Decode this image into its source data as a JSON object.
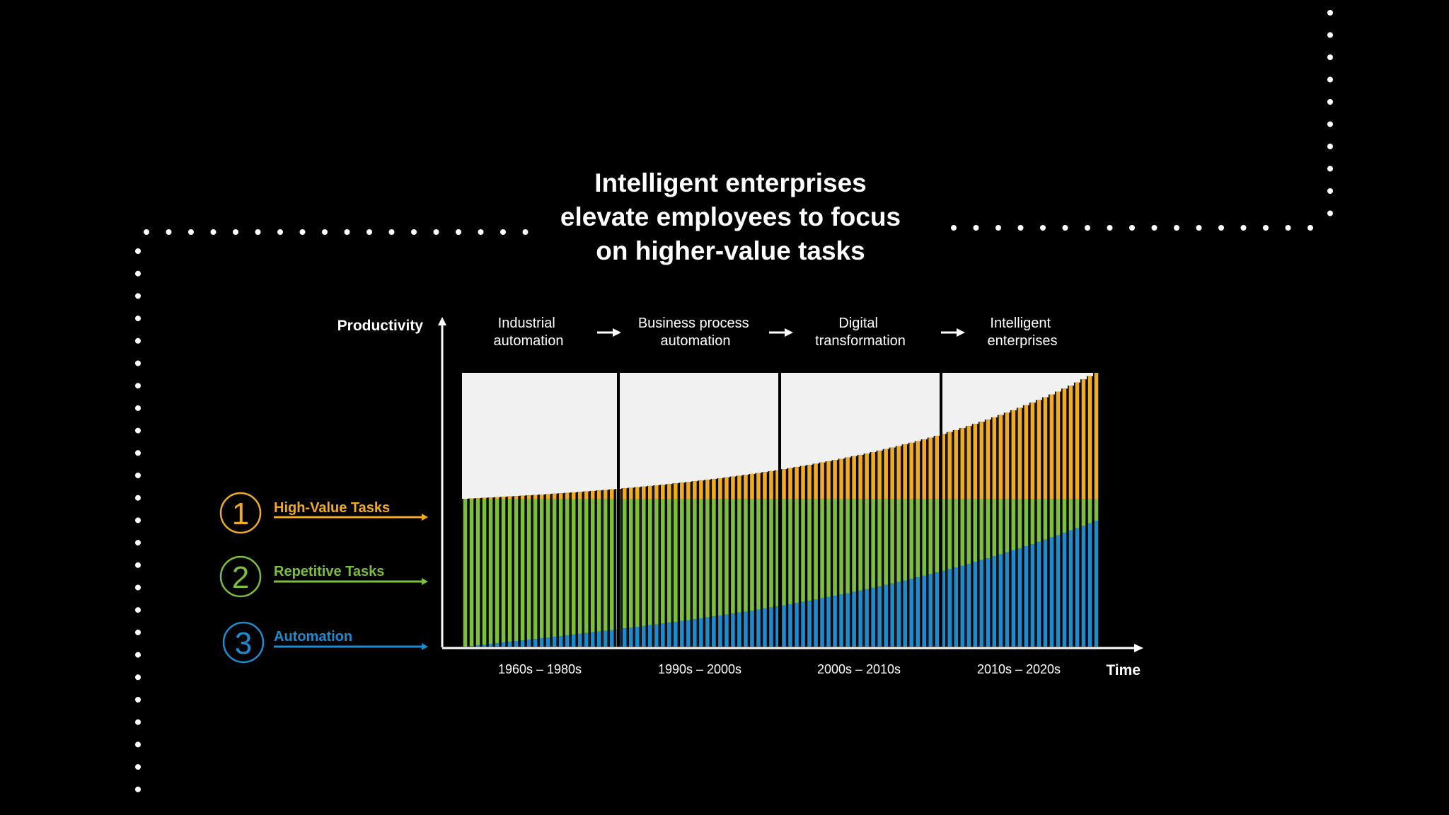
{
  "title_lines": [
    "Intelligent enterprises",
    "elevate employees to focus",
    "on higher-value tasks"
  ],
  "colors": {
    "high_value": "#F0AB22",
    "repetitive": "#7DBE3F",
    "automation": "#1E8BCF",
    "panel": "#F2F1F2",
    "background": "#000000"
  },
  "chart_data": {
    "type": "bar",
    "stacked": true,
    "ylabel": "Productivity",
    "xlabel": "Time",
    "eras": [
      {
        "label_lines": [
          "Industrial",
          "automation"
        ],
        "period": "1960s – 1980s"
      },
      {
        "label_lines": [
          "Business process",
          "automation"
        ],
        "period": "1990s – 2000s"
      },
      {
        "label_lines": [
          "Digital",
          "transformation"
        ],
        "period": "2000s – 2010s"
      },
      {
        "label_lines": [
          "Intelligent",
          "enterprises"
        ],
        "period": "2010s – 2020s"
      }
    ],
    "legend": [
      {
        "number": "1",
        "label": "High-Value Tasks",
        "color": "#F0AB22"
      },
      {
        "number": "2",
        "label": "Repetitive Tasks",
        "color": "#7DBE3F"
      },
      {
        "number": "3",
        "label": "Automation",
        "color": "#1E8BCF"
      }
    ],
    "series_shape": {
      "bar_count": 100,
      "total_level": {
        "start": 0.54,
        "end": 1.0,
        "curve": "exponential"
      },
      "repetitive_top_level": 0.54,
      "automation_level": {
        "start": 0.0,
        "end": 0.46,
        "curve": "accelerating"
      }
    }
  }
}
